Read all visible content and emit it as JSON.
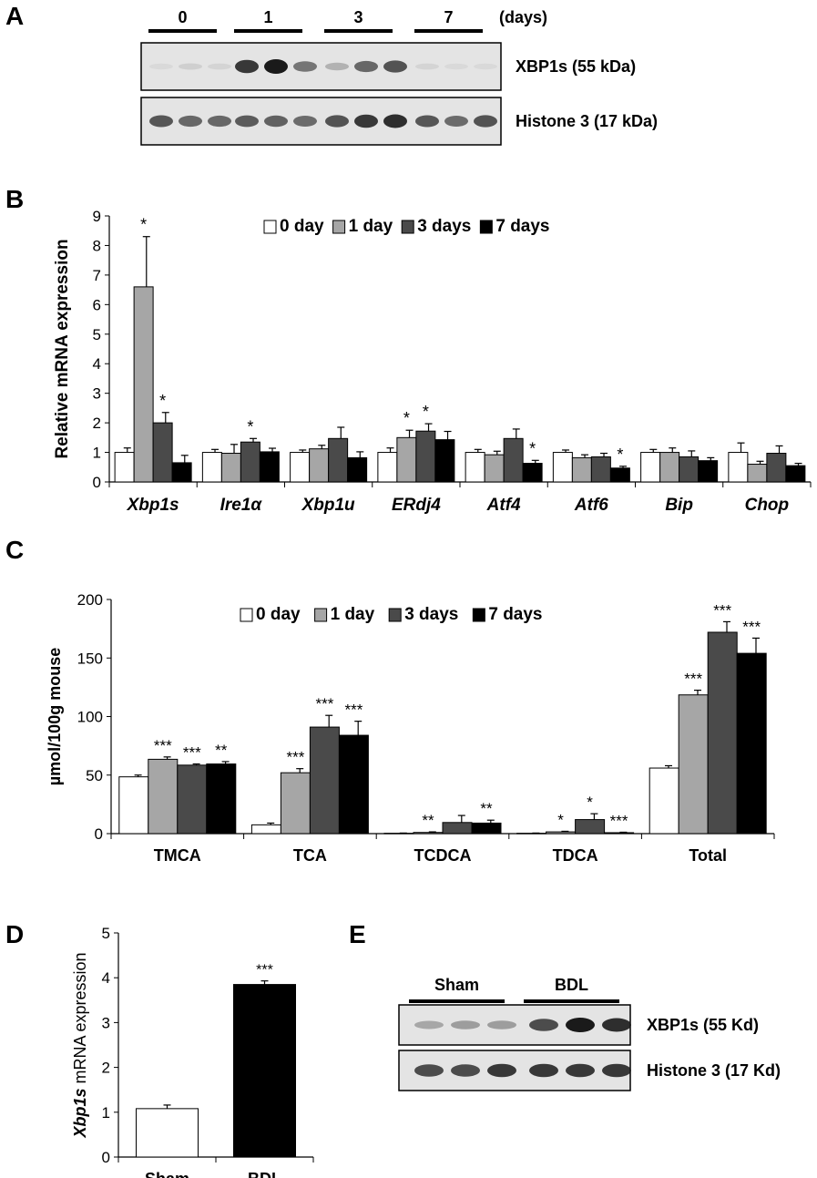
{
  "colors": {
    "series": [
      "#ffffff",
      "#a6a6a6",
      "#4a4a4a",
      "#000000"
    ],
    "blot_bg": "#e4e4e4",
    "blot_band": "#1a1a1a"
  },
  "panel_a": {
    "letter": "A",
    "groups": [
      "0",
      "1",
      "3",
      "7"
    ],
    "unit": "(days)",
    "blots": [
      {
        "label": "XBP1s (55 kDa)",
        "intensities": [
          0.05,
          0.1,
          0.08,
          0.85,
          1.0,
          0.55,
          0.25,
          0.62,
          0.72,
          0.08,
          0.05,
          0.05
        ]
      },
      {
        "label": "Histone 3 (17 kDa)",
        "intensities": [
          0.7,
          0.62,
          0.62,
          0.68,
          0.65,
          0.6,
          0.72,
          0.85,
          0.9,
          0.7,
          0.6,
          0.72
        ]
      }
    ]
  },
  "panel_b": {
    "letter": "B"
  },
  "panel_c": {
    "letter": "C"
  },
  "panel_d": {
    "letter": "D"
  },
  "panel_e": {
    "letter": "E",
    "groups": [
      "Sham",
      "BDL"
    ],
    "blots": [
      {
        "label": "XBP1s (55 Kd)",
        "intensities": [
          0.3,
          0.35,
          0.35,
          0.75,
          1.0,
          0.9
        ]
      },
      {
        "label": "Histone 3 (17 Kd)",
        "intensities": [
          0.75,
          0.75,
          0.85,
          0.85,
          0.85,
          0.85
        ]
      }
    ]
  },
  "chart_data": [
    {
      "type": "bar",
      "panel": "B",
      "ylabel": "Relative mRNA expression",
      "categories": [
        "Xbp1s",
        "Ire1α",
        "Xbp1u",
        "ERdj4",
        "Atf4",
        "Atf6",
        "Bip",
        "Chop"
      ],
      "categories_italic": true,
      "ylim": [
        0,
        9
      ],
      "yticks": [
        0,
        1,
        2,
        3,
        4,
        5,
        6,
        7,
        8,
        9
      ],
      "legend_position": "top",
      "series": [
        {
          "name": "0 day",
          "values": [
            1.0,
            1.0,
            1.0,
            1.0,
            1.0,
            1.0,
            1.0,
            1.0
          ],
          "errors": [
            0.15,
            0.1,
            0.08,
            0.15,
            0.1,
            0.08,
            0.1,
            0.32
          ],
          "sig": [
            "",
            "",
            "",
            "",
            "",
            "",
            "",
            ""
          ]
        },
        {
          "name": "1 day",
          "values": [
            6.6,
            0.97,
            1.12,
            1.5,
            0.92,
            0.82,
            1.0,
            0.6
          ],
          "errors": [
            1.7,
            0.3,
            0.12,
            0.25,
            0.12,
            0.1,
            0.15,
            0.1
          ],
          "sig": [
            "*",
            "",
            "",
            "*",
            "",
            "",
            "",
            ""
          ]
        },
        {
          "name": "3 days",
          "values": [
            2.0,
            1.35,
            1.47,
            1.72,
            1.47,
            0.85,
            0.85,
            0.97
          ],
          "errors": [
            0.35,
            0.12,
            0.38,
            0.25,
            0.32,
            0.12,
            0.2,
            0.25
          ],
          "sig": [
            "*",
            "*",
            "",
            "*",
            "",
            "",
            "",
            ""
          ]
        },
        {
          "name": "7 days",
          "values": [
            0.65,
            1.02,
            0.82,
            1.43,
            0.63,
            0.47,
            0.72,
            0.55
          ],
          "errors": [
            0.25,
            0.12,
            0.2,
            0.28,
            0.1,
            0.06,
            0.1,
            0.08
          ],
          "sig": [
            "",
            "",
            "",
            "",
            "*",
            "*",
            "",
            ""
          ]
        }
      ]
    },
    {
      "type": "bar",
      "panel": "C",
      "ylabel": "µmol/100g mouse",
      "categories": [
        "TMCA",
        "TCA",
        "TCDCA",
        "TDCA",
        "Total"
      ],
      "ylim": [
        0,
        200
      ],
      "yticks": [
        0,
        50,
        100,
        150,
        200
      ],
      "legend_position": "top",
      "series": [
        {
          "name": "0 day",
          "values": [
            48.5,
            7.5,
            0.3,
            0.3,
            56
          ],
          "errors": [
            1.5,
            1.5,
            0.2,
            0.2,
            2.0
          ],
          "sig": [
            "",
            "",
            "",
            "",
            ""
          ]
        },
        {
          "name": "1 day",
          "values": [
            63.5,
            52,
            1.0,
            1.5,
            118.5
          ],
          "errors": [
            2.0,
            3.5,
            0.5,
            0.5,
            4.0
          ],
          "sig": [
            "***",
            "***",
            "**",
            "*",
            "***"
          ]
        },
        {
          "name": "3 days",
          "values": [
            58.5,
            91,
            9.5,
            12,
            172
          ],
          "errors": [
            1.0,
            10,
            6,
            5,
            9
          ],
          "sig": [
            "***",
            "***",
            "",
            "*",
            "***"
          ]
        },
        {
          "name": "7 days",
          "values": [
            59.5,
            84,
            9.0,
            0.8,
            154
          ],
          "errors": [
            2.0,
            12,
            2.5,
            0.4,
            13
          ],
          "sig": [
            "**",
            "***",
            "**",
            "***",
            "***"
          ]
        }
      ]
    },
    {
      "type": "bar",
      "panel": "D",
      "ylabel_italic": "Xbp1s",
      "ylabel_rest": "mRNA expression",
      "categories": [
        "Sham",
        "BDL"
      ],
      "ylim": [
        0,
        5
      ],
      "yticks": [
        0,
        1,
        2,
        3,
        4,
        5
      ],
      "series": [
        {
          "values": [
            1.08,
            3.85
          ],
          "errors": [
            0.08,
            0.08
          ],
          "colors": [
            "#ffffff",
            "#000000"
          ],
          "sig": [
            "",
            "***"
          ]
        }
      ]
    }
  ]
}
